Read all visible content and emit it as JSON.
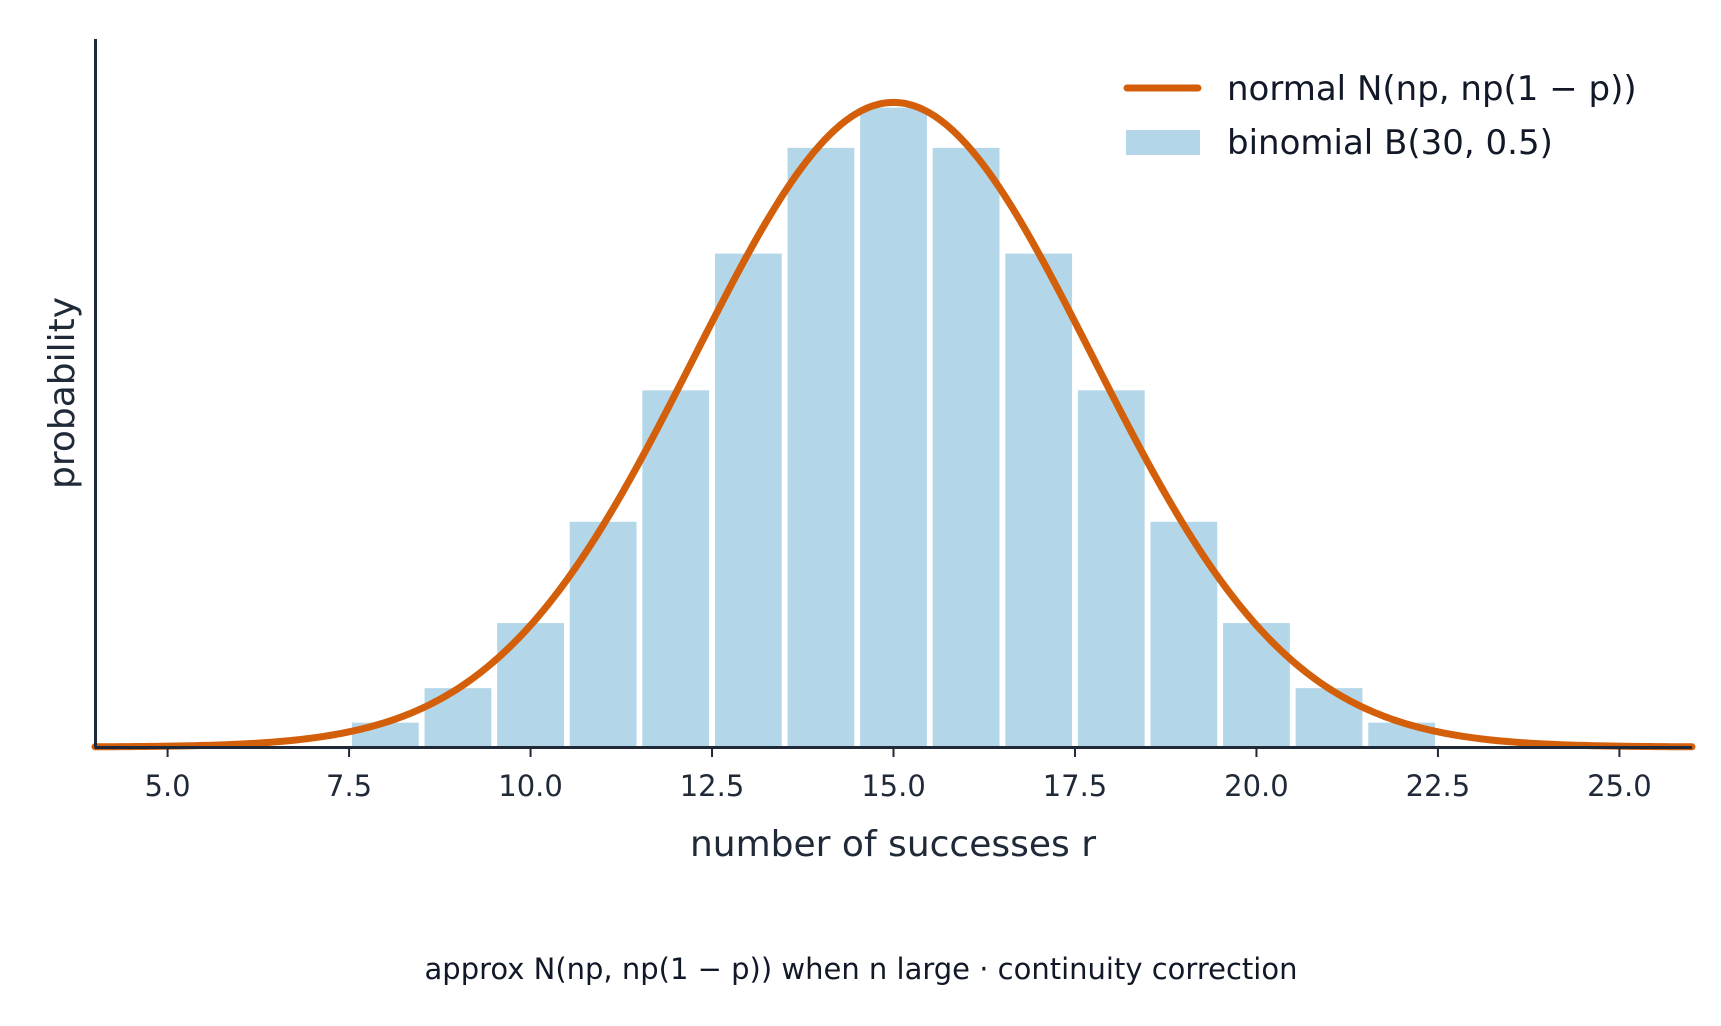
{
  "chart_data": {
    "type": "bar",
    "x": [
      8,
      9,
      10,
      11,
      12,
      13,
      14,
      15,
      16,
      17,
      18,
      19,
      20,
      21,
      22
    ],
    "series": [
      {
        "name": "binomial B(30, 0.5)",
        "type": "bar",
        "values": [
          0.0055,
          0.0133,
          0.028,
          0.0509,
          0.0806,
          0.1115,
          0.1354,
          0.1445,
          0.1354,
          0.1115,
          0.0806,
          0.0509,
          0.028,
          0.0133,
          0.0055
        ],
        "color": "#b3d6e8"
      },
      {
        "name": "normal N(np, np(1 − p))",
        "type": "line",
        "mean": 15,
        "variance": 7.5,
        "color": "#d35f0a"
      }
    ],
    "xlabel": "number of successes r",
    "ylabel": "probability",
    "xlim": [
      4,
      26
    ],
    "ylim": [
      0,
      0.16
    ],
    "xticks": [
      "5.0",
      "7.5",
      "10.0",
      "12.5",
      "15.0",
      "17.5",
      "20.0",
      "22.5",
      "25.0"
    ],
    "legend": "top-right",
    "grid": false
  },
  "legend": {
    "normal_prefix": "normal ",
    "normal_formula": "N(np, np(1 − p))",
    "binomial_prefix": "binomial ",
    "binomial_formula": "B(30, 0.5)"
  },
  "caption": "approx N(np, np(1 − p)) when n large  ·  continuity correction",
  "colors": {
    "bar": "#b3d6e8",
    "curve": "#d35f0a",
    "axis": "#1f2937"
  }
}
